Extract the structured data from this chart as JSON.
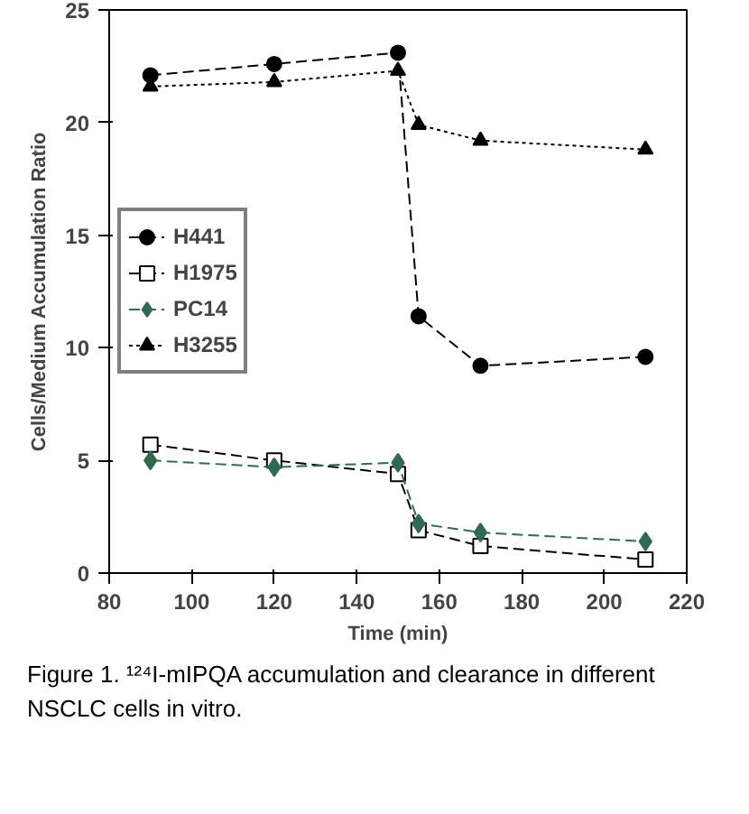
{
  "chart_data": {
    "type": "line",
    "xlabel": "Time (min)",
    "ylabel": "Cells/Medium Accumulation Ratio",
    "x": [
      90,
      120,
      150,
      155,
      170,
      210
    ],
    "series": [
      {
        "name": "H441",
        "color": "#000000",
        "marker": "circle",
        "line_style": "dashed",
        "values": [
          22.1,
          22.6,
          23.1,
          11.4,
          9.2,
          9.6
        ]
      },
      {
        "name": "H1975",
        "color": "#000000",
        "marker": "square",
        "line_style": "dashed",
        "values": [
          5.7,
          5.0,
          4.4,
          1.9,
          1.2,
          0.6
        ]
      },
      {
        "name": "PC14",
        "color": "#2f6b4f",
        "marker": "diamond",
        "line_style": "dashed",
        "values": [
          5.0,
          4.7,
          4.9,
          2.2,
          1.8,
          1.4
        ]
      },
      {
        "name": "H3255",
        "color": "#000000",
        "marker": "triangle",
        "line_style": "dotted",
        "values": [
          21.6,
          21.8,
          22.3,
          19.9,
          19.2,
          18.8
        ]
      }
    ],
    "xlim": [
      80,
      220
    ],
    "xticks": [
      80,
      100,
      120,
      140,
      160,
      180,
      200,
      220
    ],
    "ylim": [
      0,
      25
    ],
    "yticks": [
      0,
      5,
      10,
      15,
      20,
      25
    ],
    "grid": false,
    "legend": "left",
    "annotations": [
      "Figure 1. ¹²⁴I-mIPQA accumulation and clearance in different NSCLC cells in vitro."
    ]
  }
}
